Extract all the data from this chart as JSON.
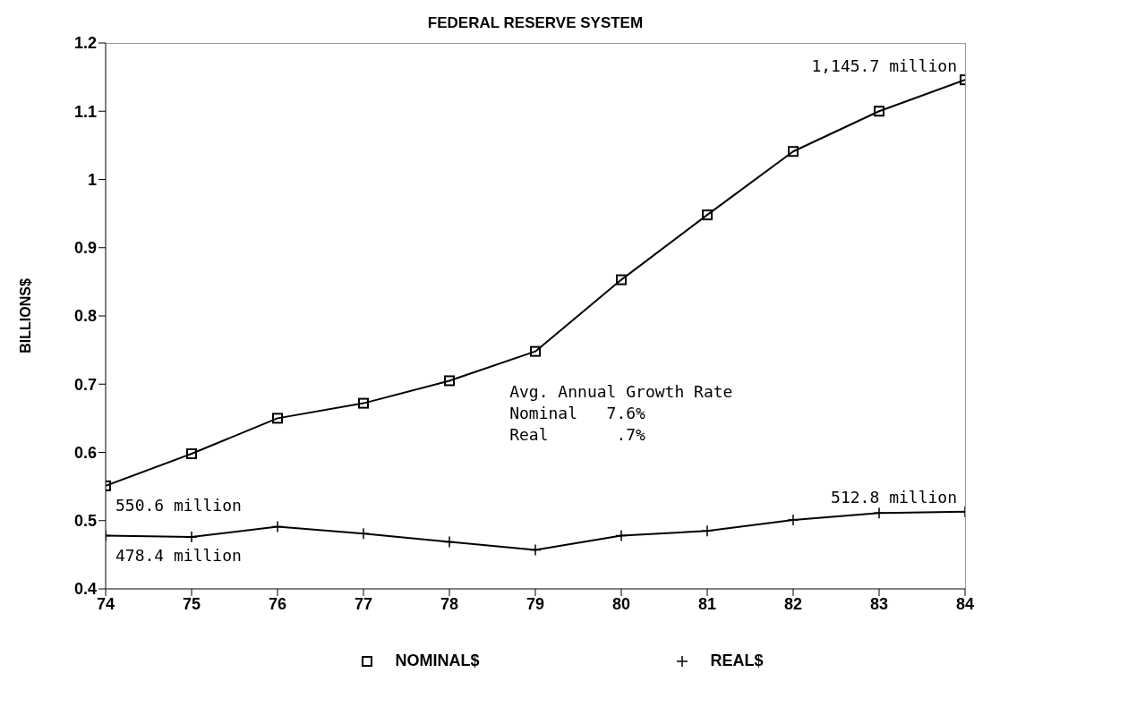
{
  "chart_data": {
    "type": "line",
    "title": "FEDERAL RESERVE SYSTEM",
    "ylabel": "BILLIONS$",
    "categories": [
      "74",
      "75",
      "76",
      "77",
      "78",
      "79",
      "80",
      "81",
      "82",
      "83",
      "84"
    ],
    "series": [
      {
        "name": "NOMINAL$",
        "color": "#000000",
        "marker": "square",
        "values": [
          0.551,
          0.598,
          0.65,
          0.672,
          0.705,
          0.748,
          0.853,
          0.948,
          1.041,
          1.1,
          1.146
        ]
      },
      {
        "name": "REAL$",
        "color": "#000000",
        "marker": "cross",
        "values": [
          0.478,
          0.476,
          0.491,
          0.481,
          0.469,
          0.457,
          0.478,
          0.485,
          0.501,
          0.511,
          0.513
        ]
      }
    ],
    "ylim": [
      0.4,
      1.2
    ],
    "yticks": [
      0.4,
      0.5,
      0.6,
      0.7,
      0.8,
      0.9,
      1,
      1.1,
      1.2
    ],
    "grid": false,
    "legend": "bottom",
    "line_style": "solid",
    "annotations": [
      {
        "text": "550.6 million",
        "x": "74",
        "y": 0.551
      },
      {
        "text": "478.4 million",
        "x": "74",
        "y": 0.478
      },
      {
        "text": "1,145.7 million",
        "x": "84",
        "y": 1.146
      },
      {
        "text": "512.8 million",
        "x": "84",
        "y": 0.513
      },
      "Avg. Annual Growth Rate",
      "Nominal   7.6%",
      "Real       .7%"
    ]
  }
}
